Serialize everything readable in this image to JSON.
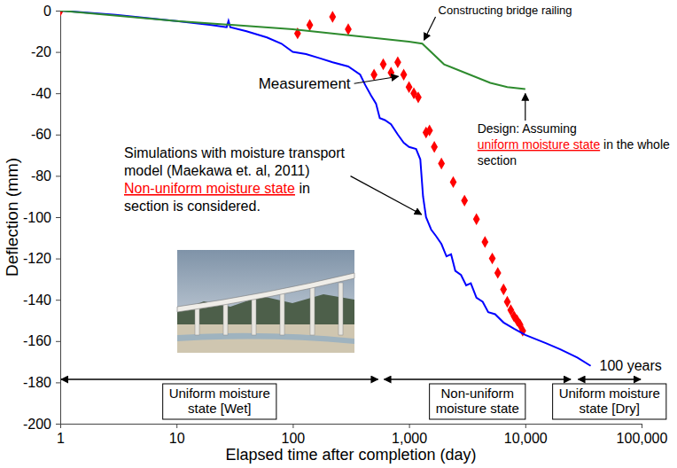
{
  "chart_data": {
    "type": "line",
    "x_label": "Elapsed time after completion (day)",
    "y_label": "Deflection (mm)",
    "log": "x",
    "grid": false,
    "xlim": [
      1,
      100000
    ],
    "xticks": [
      1,
      10,
      100,
      {
        "value": 1000,
        "label": "1,000"
      },
      {
        "value": 10000,
        "label": "10,000"
      },
      {
        "value": 100000,
        "label": "100,000"
      }
    ],
    "ylim": [
      -200,
      0
    ],
    "yticks": [
      -200,
      -180,
      -160,
      -140,
      -120,
      -100,
      -80,
      -60,
      -40,
      -20,
      0
    ],
    "series": [
      {
        "type": "scatter",
        "color": "#ff0000",
        "marker": "diamond",
        "x": [
          1,
          110,
          140,
          220,
          300,
          500,
          600,
          700,
          800,
          900,
          1000,
          1100,
          1200,
          1400,
          1500,
          1650,
          1900,
          2400,
          3000,
          3800,
          4500,
          5200,
          5800,
          6500,
          7000,
          7500,
          8000,
          8500,
          9000,
          9500
        ],
        "values": [
          0,
          -11,
          -7,
          -3,
          -9,
          -31,
          -26,
          -30,
          -25,
          -31,
          -37,
          -40,
          -42,
          -59,
          -58,
          -66,
          -74,
          -83,
          -92,
          -101,
          -112,
          -120,
          -127,
          -135,
          -141,
          -145,
          -148,
          -150,
          -152,
          -155
        ]
      },
      {
        "type": "line",
        "color": "#0000ff",
        "x": [
          1,
          3,
          10,
          20,
          27,
          28,
          29,
          40,
          60,
          80,
          100,
          130,
          170,
          220,
          300,
          380,
          420,
          470,
          520,
          560,
          620,
          700,
          800,
          900,
          1000,
          1150,
          1250,
          1320,
          1400,
          1550,
          1700,
          1900,
          2100,
          2300,
          2500,
          2800,
          3100,
          3400,
          3800,
          4300,
          4800,
          5500,
          6500,
          8000,
          10000,
          15000,
          20000,
          28000,
          36500
        ],
        "values": [
          0,
          -2,
          -5,
          -7,
          -8,
          -5,
          -8,
          -10,
          -13,
          -16,
          -20,
          -21,
          -23,
          -25,
          -27,
          -31,
          -36,
          -41,
          -45,
          -52,
          -53,
          -55,
          -60,
          -64,
          -66,
          -67,
          -72,
          -90,
          -100,
          -106,
          -109,
          -113,
          -119,
          -118,
          -126,
          -128,
          -133,
          -132,
          -139,
          -141,
          -146,
          -147,
          -151,
          -154,
          -157,
          -161,
          -164,
          -168,
          -172
        ]
      },
      {
        "type": "line",
        "color": "#2e8b2e",
        "x": [
          1,
          10,
          100,
          1000,
          1300,
          2000,
          5000,
          7000,
          10000
        ],
        "values": [
          0,
          -5,
          -9,
          -15,
          -16,
          -26,
          -35,
          -37,
          -38
        ]
      }
    ],
    "annotations": [
      {
        "text": "Constructing bridge railing"
      },
      {
        "text": "Measurement"
      },
      {
        "lines": [
          "Simulations with moisture transport",
          "model (Maekawa et. al, 2011)",
          "Non-uniform moisture state in",
          "section is considered."
        ],
        "highlight": "Non-uniform moisture state"
      },
      {
        "lines": [
          "Design: Assuming",
          "uniform moisture state in the whole",
          "section"
        ],
        "highlight": "uniform moisture state"
      },
      {
        "text": "100 years"
      }
    ],
    "phases": [
      {
        "label": "Uniform moisture state [Wet]",
        "x": [
          1,
          550
        ]
      },
      {
        "label": "Non-uniform moisture state",
        "x": [
          600,
          25000
        ]
      },
      {
        "label": "Uniform moisture state [Dry]",
        "x": [
          28000,
          100000
        ]
      }
    ]
  }
}
